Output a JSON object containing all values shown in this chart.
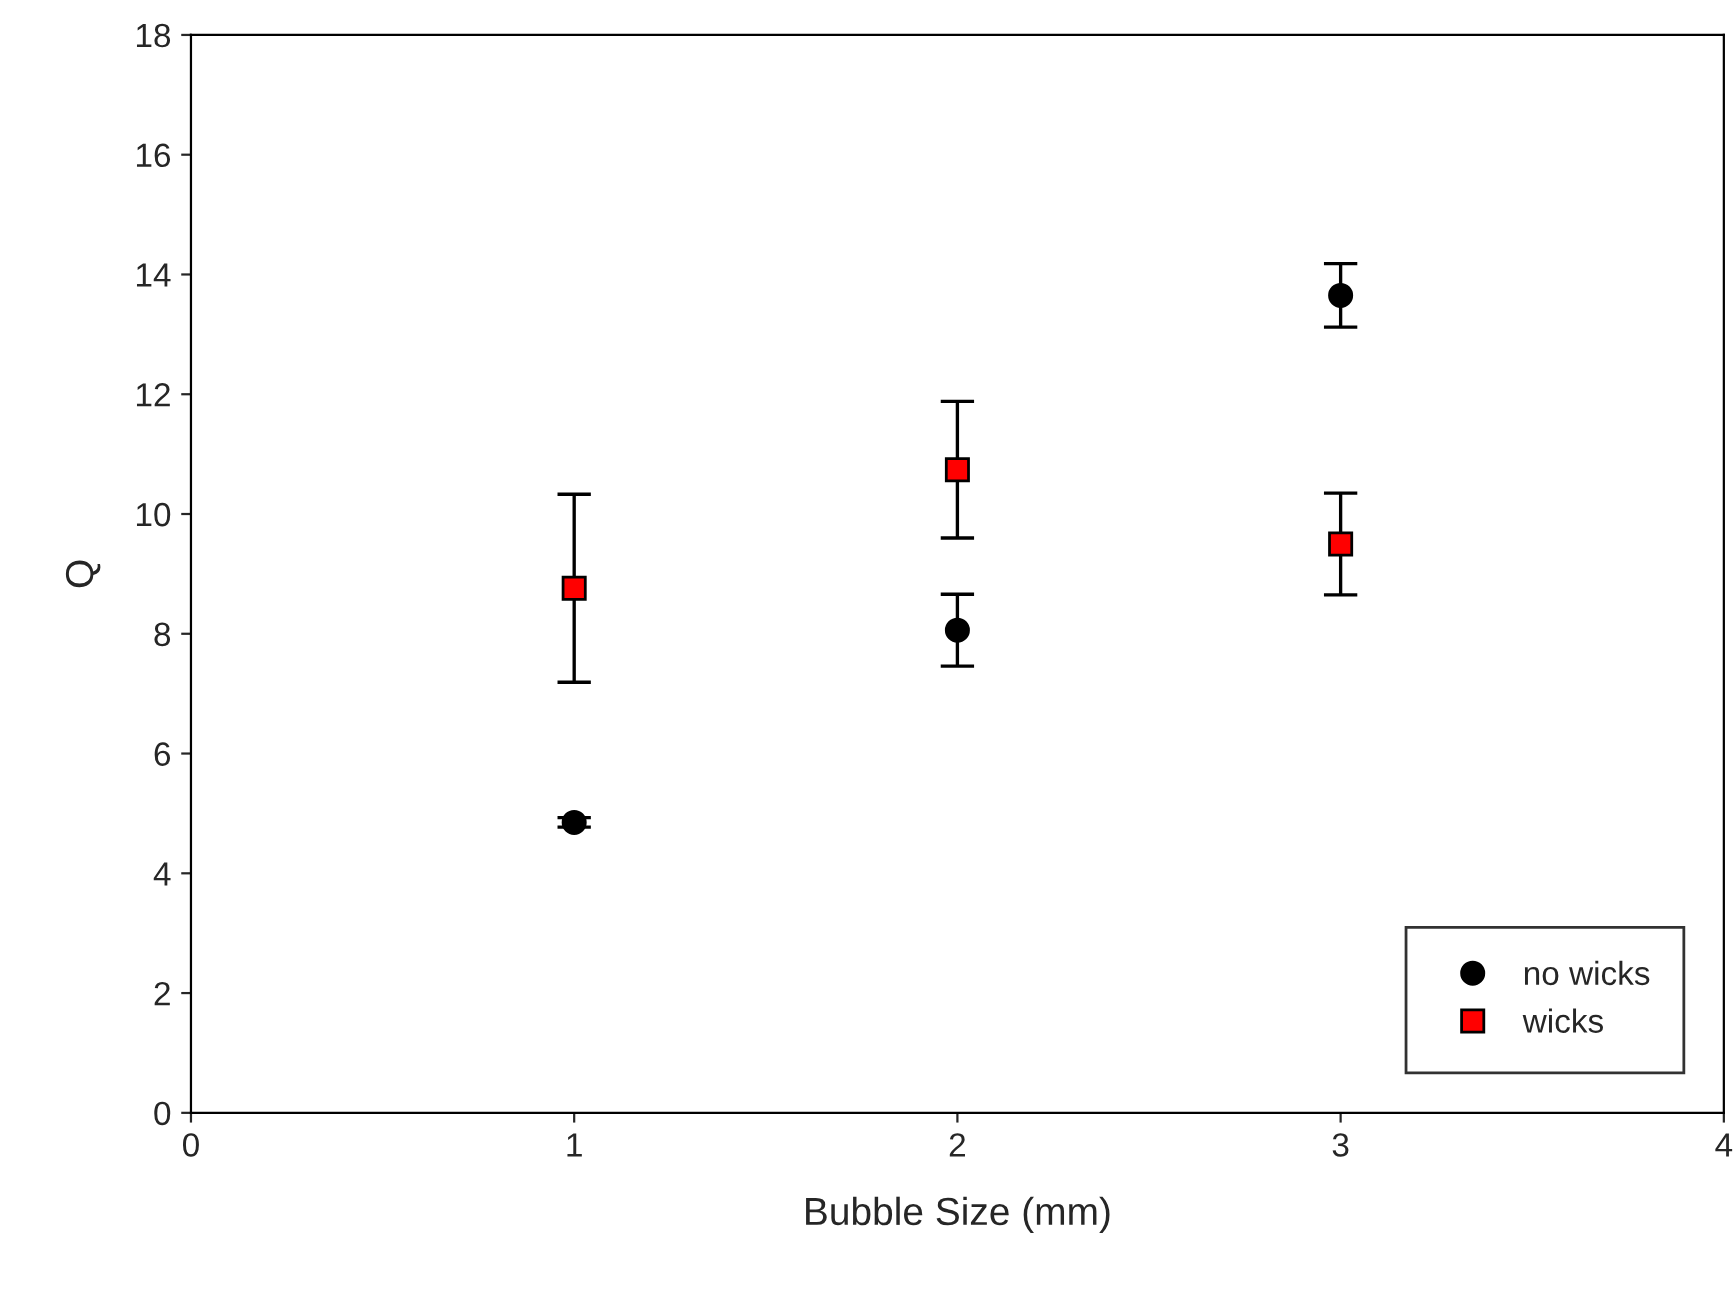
{
  "chart_data": {
    "type": "scatter",
    "xlabel": "Bubble Size (mm)",
    "ylabel": "Q",
    "x": [
      1,
      2,
      3
    ],
    "series": [
      {
        "name": "no wicks",
        "color": "#000000",
        "marker": "circle",
        "values": [
          4.85,
          8.06,
          13.65
        ],
        "errors": [
          0.08,
          0.6,
          0.53
        ]
      },
      {
        "name": "wicks",
        "color": "#ff0000",
        "marker": "square",
        "values": [
          8.76,
          10.74,
          9.5
        ],
        "errors": [
          1.57,
          1.14,
          0.85
        ]
      }
    ],
    "xlim": [
      0,
      4
    ],
    "xticks": [
      0,
      1,
      2,
      3,
      4
    ],
    "ylim": [
      0,
      18
    ],
    "yticks": [
      0,
      2,
      4,
      6,
      8,
      10,
      12,
      14,
      16,
      18
    ],
    "grid": false,
    "legend": "bottom right"
  }
}
